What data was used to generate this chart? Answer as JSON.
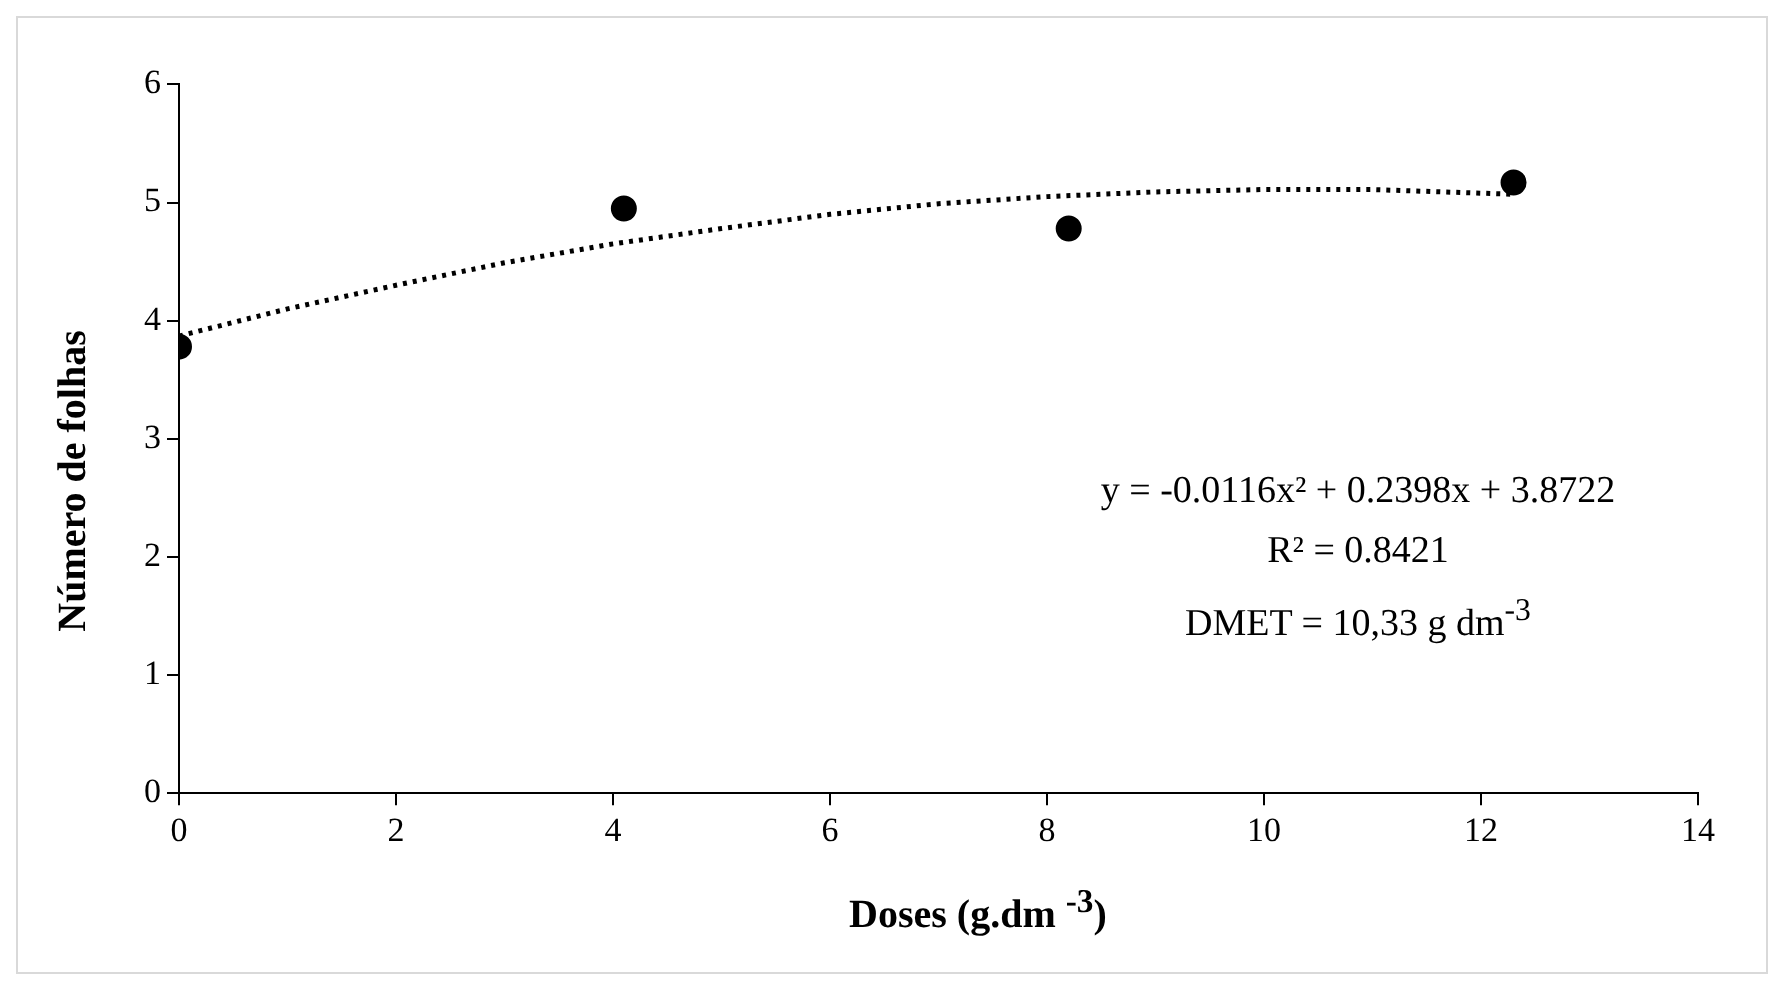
{
  "chart_data": {
    "type": "scatter",
    "xlabel": "Doses (g.dm $^{-3}$)",
    "ylabel": "Número de folhas",
    "xlim": [
      0,
      14
    ],
    "xticks": [
      0,
      2,
      4,
      6,
      8,
      10,
      12,
      14
    ],
    "ylim": [
      0,
      6
    ],
    "yticks": [
      0,
      1,
      2,
      3,
      4,
      5,
      6
    ],
    "grid": false,
    "legend": false,
    "marker": "circle",
    "series": [
      {
        "type": "scatter",
        "color": "#000000",
        "x": [
          0,
          4.1,
          8.2,
          12.3
        ],
        "values": [
          3.78,
          4.95,
          4.78,
          5.17
        ]
      },
      {
        "type": "line",
        "color": "#000000",
        "line_style": "dotted",
        "marker": "none",
        "x": [
          0,
          1,
          2,
          3,
          4,
          5,
          6,
          7,
          8,
          9,
          10,
          11,
          12.3
        ],
        "values": [
          3.87,
          4.1,
          4.3,
          4.49,
          4.65,
          4.78,
          4.9,
          4.99,
          5.05,
          5.09,
          5.11,
          5.11,
          5.07
        ]
      }
    ],
    "annotations": [
      "y = -0.0116x² + 0.2398x + 3.8722",
      "R² = 0.8421",
      "DMET = 10,33 g dm$^{-3}$"
    ]
  }
}
